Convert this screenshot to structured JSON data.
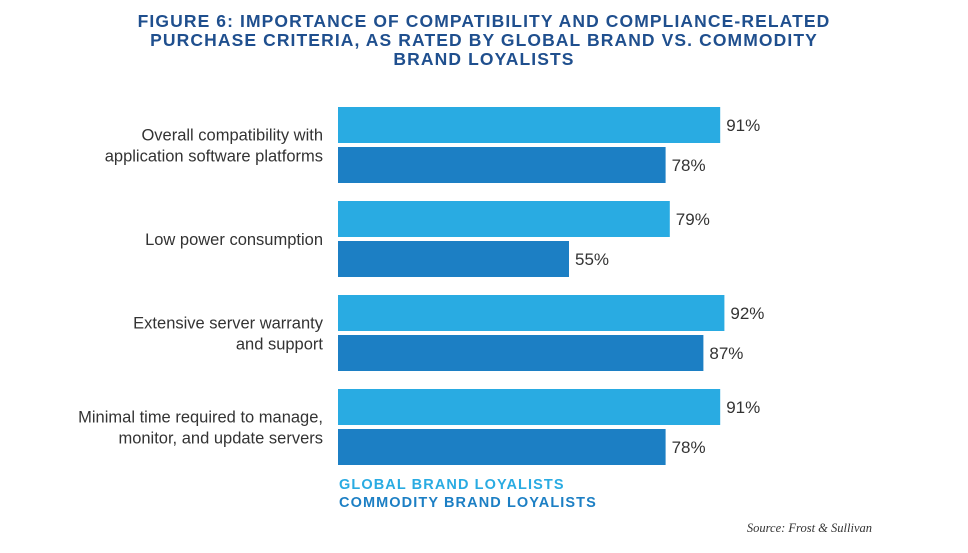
{
  "title_lines": [
    "FIGURE 6: IMPORTANCE OF COMPATIBILITY AND COMPLIANCE-RELATED",
    "PURCHASE CRITERIA, AS RATED BY GLOBAL BRAND VS. COMMODITY",
    "BRAND LOYALISTS"
  ],
  "source": "Source: Frost & Sullivan",
  "colors": {
    "title": "#1f4f8e",
    "global": "#29abe2",
    "commodity": "#1c7fc4",
    "label": "#333333"
  },
  "chart_data": {
    "type": "bar",
    "orientation": "horizontal",
    "categories": [
      [
        "Overall compatibility with",
        "application software platforms"
      ],
      [
        "Low power consumption"
      ],
      [
        "Extensive server warranty",
        "and support"
      ],
      [
        "Minimal time required to manage,",
        "monitor, and update servers"
      ]
    ],
    "series": [
      {
        "name": "GLOBAL BRAND LOYALISTS",
        "values": [
          91,
          79,
          92,
          91
        ],
        "labels": [
          "91%",
          "79%",
          "92%",
          "91%"
        ],
        "color": "#29abe2"
      },
      {
        "name": "COMMODITY BRAND LOYALISTS",
        "values": [
          78,
          55,
          87,
          78
        ],
        "labels": [
          "78%",
          "55%",
          "87%",
          "78%"
        ],
        "color": "#1c7fc4"
      }
    ],
    "xlim": [
      0,
      100
    ],
    "grid": false,
    "legend_position": "bottom-left"
  }
}
